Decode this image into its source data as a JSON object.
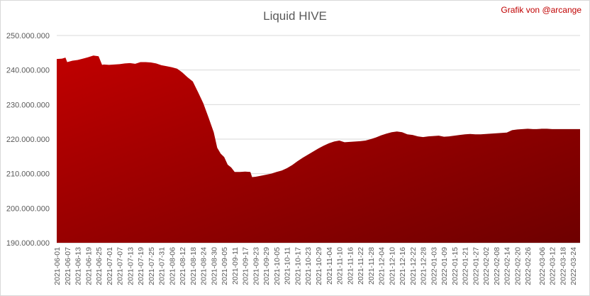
{
  "chart_data": {
    "type": "area",
    "title": "Liquid HIVE",
    "credit": "Grafik von @arcange",
    "xlabel": "",
    "ylabel": "",
    "ylim": [
      190000000,
      250000000
    ],
    "y_ticks": [
      {
        "value": 190000000,
        "label": "190.000.000"
      },
      {
        "value": 200000000,
        "label": "200.000.000"
      },
      {
        "value": 210000000,
        "label": "210.000.000"
      },
      {
        "value": 220000000,
        "label": "220.000.000"
      },
      {
        "value": 230000000,
        "label": "230.000.000"
      },
      {
        "value": 240000000,
        "label": "240.000.000"
      },
      {
        "value": 250000000,
        "label": "250.000.000"
      }
    ],
    "x_ticks": [
      "2021-06-01",
      "2021-06-07",
      "2021-06-13",
      "2021-06-19",
      "2021-06-25",
      "2021-07-01",
      "2021-07-07",
      "2021-07-13",
      "2021-07-19",
      "2021-07-25",
      "2021-07-31",
      "2021-08-06",
      "2021-08-12",
      "2021-08-18",
      "2021-08-24",
      "2021-08-30",
      "2021-09-05",
      "2021-09-11",
      "2021-09-17",
      "2021-09-23",
      "2021-09-29",
      "2021-10-05",
      "2021-10-11",
      "2021-10-17",
      "2021-10-23",
      "2021-10-29",
      "2021-11-04",
      "2021-11-10",
      "2021-11-16",
      "2021-11-22",
      "2021-11-28",
      "2021-12-04",
      "2021-12-10",
      "2021-12-16",
      "2021-12-22",
      "2021-12-28",
      "2022-01-03",
      "2022-01-09",
      "2022-01-15",
      "2022-01-21",
      "2022-01-27",
      "2022-02-02",
      "2022-02-08",
      "2022-02-14",
      "2022-02-20",
      "2022-02-26",
      "2022-03-06",
      "2022-03-12",
      "2022-03-18",
      "2022-03-24"
    ],
    "grid": true,
    "legend": "none",
    "fill_color_top": "#c00000",
    "fill_color_bottom": "#6e0000",
    "series": [
      {
        "x": [
          "2021-06-01",
          "2021-06-04",
          "2021-06-06",
          "2021-06-07",
          "2021-06-10",
          "2021-06-13",
          "2021-06-16",
          "2021-06-19",
          "2021-06-22",
          "2021-06-25",
          "2021-06-27",
          "2021-06-28",
          "2021-07-01",
          "2021-07-04",
          "2021-07-07",
          "2021-07-10",
          "2021-07-13",
          "2021-07-16",
          "2021-07-19",
          "2021-07-22",
          "2021-07-25",
          "2021-07-28",
          "2021-07-31",
          "2021-08-03",
          "2021-08-06",
          "2021-08-09",
          "2021-08-12",
          "2021-08-15",
          "2021-08-18",
          "2021-08-21",
          "2021-08-24",
          "2021-08-27",
          "2021-08-30",
          "2021-09-01",
          "2021-09-03",
          "2021-09-05",
          "2021-09-07",
          "2021-09-09",
          "2021-09-11",
          "2021-09-14",
          "2021-09-17",
          "2021-09-20",
          "2021-09-21",
          "2021-09-23",
          "2021-09-26",
          "2021-09-29",
          "2021-10-02",
          "2021-10-05",
          "2021-10-08",
          "2021-10-11",
          "2021-10-14",
          "2021-10-17",
          "2021-10-20",
          "2021-10-23",
          "2021-10-26",
          "2021-10-29",
          "2021-11-01",
          "2021-11-04",
          "2021-11-07",
          "2021-11-10",
          "2021-11-13",
          "2021-11-16",
          "2021-11-19",
          "2021-11-22",
          "2021-11-25",
          "2021-11-28",
          "2021-12-01",
          "2021-12-04",
          "2021-12-07",
          "2021-12-10",
          "2021-12-13",
          "2021-12-16",
          "2021-12-19",
          "2021-12-22",
          "2021-12-25",
          "2021-12-28",
          "2021-12-31",
          "2022-01-03",
          "2022-01-06",
          "2022-01-09",
          "2022-01-12",
          "2022-01-15",
          "2022-01-18",
          "2022-01-21",
          "2022-01-24",
          "2022-01-27",
          "2022-01-30",
          "2022-02-02",
          "2022-02-05",
          "2022-02-08",
          "2022-02-11",
          "2022-02-14",
          "2022-02-17",
          "2022-02-20",
          "2022-02-23",
          "2022-02-26",
          "2022-03-01",
          "2022-03-03",
          "2022-03-06",
          "2022-03-09",
          "2022-03-12",
          "2022-03-15",
          "2022-03-18",
          "2022-03-21",
          "2022-03-24",
          "2022-03-28"
        ],
        "values": [
          243200000,
          243300000,
          243600000,
          242300000,
          242700000,
          242900000,
          243300000,
          243700000,
          244200000,
          244000000,
          241500000,
          241600000,
          241500000,
          241600000,
          241700000,
          241900000,
          242000000,
          241800000,
          242300000,
          242300000,
          242200000,
          241900000,
          241400000,
          241100000,
          240800000,
          240400000,
          239300000,
          237900000,
          236700000,
          233600000,
          230400000,
          226300000,
          222000000,
          217500000,
          215800000,
          214800000,
          212600000,
          211800000,
          210500000,
          210500000,
          210600000,
          210500000,
          209000000,
          209100000,
          209400000,
          209700000,
          210000000,
          210500000,
          210900000,
          211600000,
          212500000,
          213600000,
          214600000,
          215500000,
          216400000,
          217300000,
          218100000,
          218800000,
          219300000,
          219600000,
          219100000,
          219200000,
          219300000,
          219400000,
          219600000,
          220000000,
          220500000,
          221100000,
          221600000,
          222000000,
          222200000,
          222000000,
          221400000,
          221200000,
          220800000,
          220600000,
          220800000,
          220900000,
          221000000,
          220700000,
          220800000,
          221000000,
          221200000,
          221400000,
          221500000,
          221400000,
          221400000,
          221500000,
          221600000,
          221700000,
          221800000,
          221900000,
          222600000,
          222800000,
          222900000,
          223000000,
          222900000,
          222900000,
          223000000,
          223000000,
          222900000,
          222900000,
          222900000,
          222900000,
          222900000,
          222900000
        ]
      }
    ]
  }
}
